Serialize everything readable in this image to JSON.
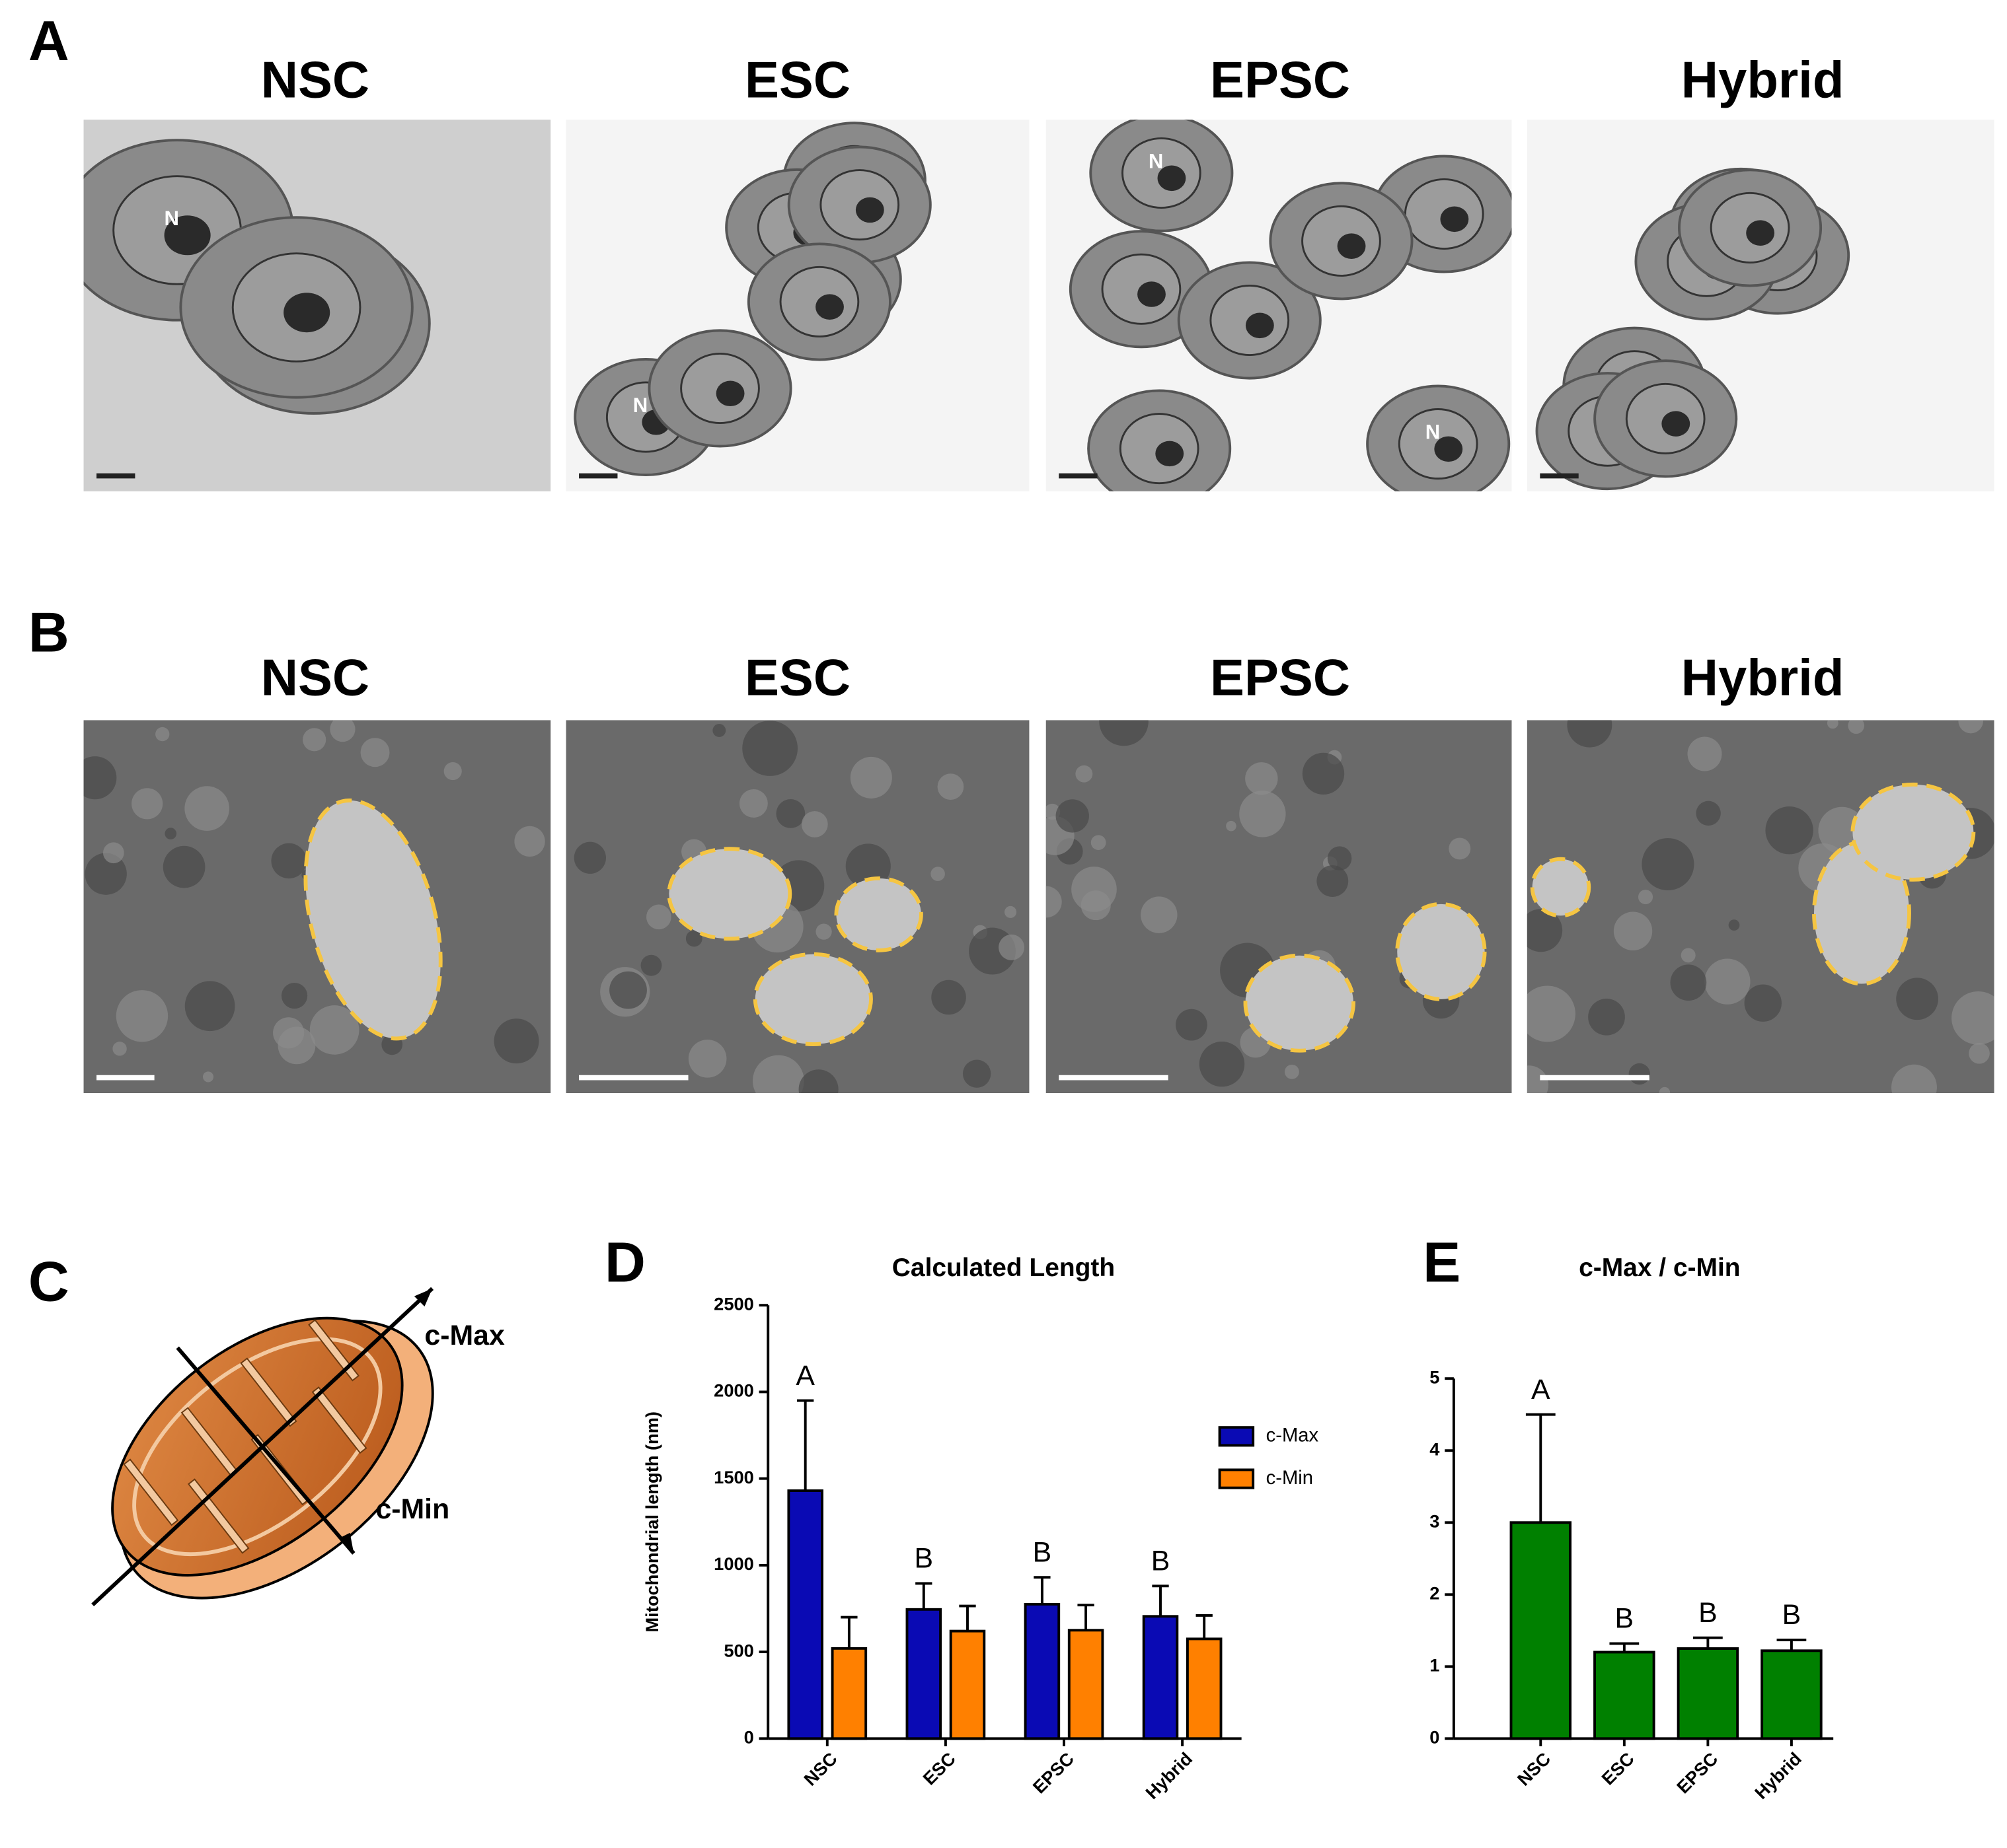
{
  "panel_a": {
    "label": "A",
    "columns": [
      "NSC",
      "ESC",
      "EPSC",
      "Hybrid"
    ],
    "nucleus_marker": "N"
  },
  "panel_b": {
    "label": "B",
    "columns": [
      "NSC",
      "ESC",
      "EPSC",
      "Hybrid"
    ]
  },
  "panel_c": {
    "label": "C",
    "axis_labels": [
      "c-Max",
      "c-Min"
    ]
  },
  "chart_data": [
    {
      "type": "bar",
      "panel_label": "D",
      "title": "Calculated Length",
      "y_label": "Mitochondrial length (nm)",
      "categories": [
        "NSC",
        "ESC",
        "EPSC",
        "Hybrid"
      ],
      "series": [
        {
          "name": "c-Max",
          "color": "#0a0ab4",
          "values": [
            1430,
            745,
            775,
            705
          ],
          "errors": [
            520,
            150,
            155,
            175
          ]
        },
        {
          "name": "c-Min",
          "color": "#ff8000",
          "values": [
            520,
            620,
            625,
            575
          ],
          "errors": [
            180,
            145,
            145,
            135
          ]
        }
      ],
      "annotations": [
        "A",
        "B",
        "B",
        "B"
      ],
      "ylim": [
        0,
        2500
      ],
      "yticks": [
        0,
        500,
        1000,
        1500,
        2000,
        2500
      ],
      "grid": false,
      "legend": "right"
    },
    {
      "type": "bar",
      "panel_label": "E",
      "title": "c-Max / c-Min",
      "categories": [
        "NSC",
        "ESC",
        "EPSC",
        "Hybrid"
      ],
      "values": [
        3.0,
        1.2,
        1.25,
        1.22
      ],
      "errors": [
        1.5,
        0.12,
        0.15,
        0.15
      ],
      "color": "#008000",
      "annotations": [
        "A",
        "B",
        "B",
        "B"
      ],
      "ylim": [
        0,
        5
      ],
      "yticks": [
        0,
        1,
        2,
        3,
        4,
        5
      ],
      "grid": false
    }
  ]
}
